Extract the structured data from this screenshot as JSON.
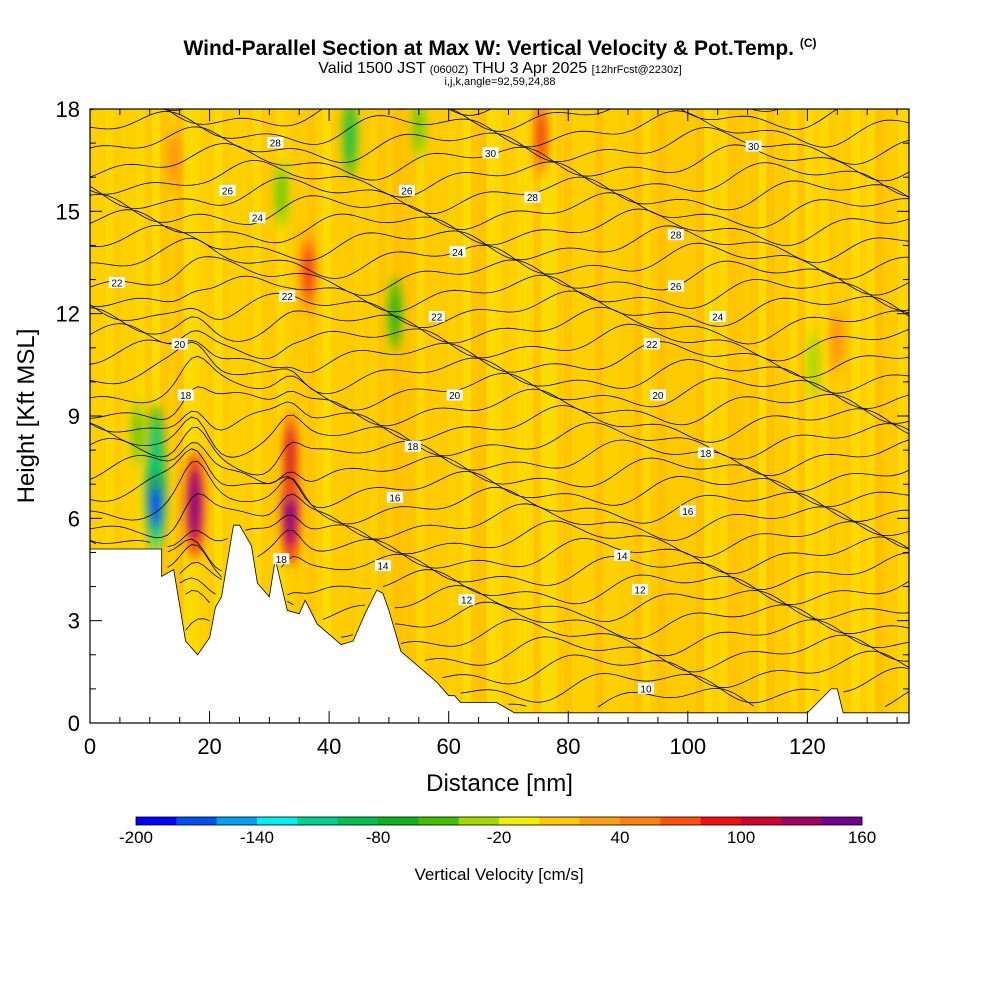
{
  "header": {
    "title": "Wind-Parallel Section at Max W: Vertical Velocity & Pot.Temp.",
    "title_mark": "(C)",
    "valid_prefix": "Valid 1500 JST",
    "valid_zulu": "(0600Z)",
    "valid_date": "THU 3 Apr 2025",
    "forecast_note": "[12hrFcst@2230z]",
    "indices": "i,j,k,angle=92,59,24,88"
  },
  "chart_data": {
    "type": "heatmap",
    "xlabel": "Distance [nm]",
    "ylabel": "Height [Kft MSL]",
    "xlim": [
      0,
      137
    ],
    "ylim": [
      0,
      18
    ],
    "x_ticks": [
      0,
      20,
      40,
      60,
      80,
      100,
      120
    ],
    "y_ticks": [
      0,
      3,
      6,
      9,
      12,
      15,
      18
    ],
    "terrain": {
      "x": [
        0,
        12,
        12,
        14,
        16,
        18,
        20,
        21,
        22,
        24,
        25,
        27,
        28,
        30,
        31,
        33,
        35,
        36,
        38,
        40,
        42,
        44,
        46,
        48,
        49,
        50,
        52,
        54,
        56,
        58,
        60,
        61,
        62,
        64,
        66,
        68,
        70,
        71,
        72,
        80,
        100,
        120,
        124,
        125,
        126,
        128,
        137
      ],
      "y": [
        5.1,
        5.1,
        4.3,
        4.5,
        2.4,
        2.0,
        2.5,
        3.4,
        3.7,
        5.8,
        5.8,
        5.2,
        4.1,
        3.7,
        4.8,
        3.3,
        3.2,
        3.6,
        2.9,
        2.6,
        2.3,
        2.4,
        3.2,
        3.9,
        3.8,
        3.3,
        2.1,
        1.8,
        1.5,
        1.2,
        0.8,
        0.8,
        0.6,
        0.6,
        0.6,
        0.6,
        0.4,
        0.3,
        0.3,
        0.3,
        0.3,
        0.3,
        1.0,
        1.0,
        0.3,
        0.3,
        0.3
      ]
    },
    "vertical_velocity_features": [
      {
        "x": 11,
        "y": 6.8,
        "value": -200
      },
      {
        "x": 11,
        "y": 8.0,
        "value": -110
      },
      {
        "x": 17.5,
        "y": 6.4,
        "value": 160
      },
      {
        "x": 33.5,
        "y": 6.2,
        "value": 160
      },
      {
        "x": 33.5,
        "y": 7.8,
        "value": 110
      },
      {
        "x": 36.5,
        "y": 13.2,
        "value": 95
      },
      {
        "x": 43.5,
        "y": 17.2,
        "value": -95
      },
      {
        "x": 51,
        "y": 12.0,
        "value": -70
      },
      {
        "x": 55,
        "y": 17.5,
        "value": -55
      },
      {
        "x": 75.5,
        "y": 17.2,
        "value": 85
      },
      {
        "x": 121,
        "y": 10.5,
        "value": -40
      },
      {
        "x": 125,
        "y": 11.2,
        "value": 55
      },
      {
        "x": 32,
        "y": 15.5,
        "value": -60
      },
      {
        "x": 14,
        "y": 16.5,
        "value": 45
      },
      {
        "x": 8,
        "y": 8.5,
        "value": -55
      }
    ],
    "theta_contour_labels": [
      {
        "x": 31,
        "y": 17.0,
        "value": "28"
      },
      {
        "x": 67,
        "y": 16.7,
        "value": "30"
      },
      {
        "x": 111,
        "y": 16.9,
        "value": "30"
      },
      {
        "x": 23,
        "y": 15.6,
        "value": "26"
      },
      {
        "x": 53,
        "y": 15.6,
        "value": "26"
      },
      {
        "x": 74,
        "y": 15.4,
        "value": "28"
      },
      {
        "x": 98,
        "y": 14.3,
        "value": "28"
      },
      {
        "x": 28,
        "y": 14.8,
        "value": "24"
      },
      {
        "x": 61.5,
        "y": 13.8,
        "value": "24"
      },
      {
        "x": 4.5,
        "y": 12.9,
        "value": "22"
      },
      {
        "x": 33,
        "y": 12.5,
        "value": "22"
      },
      {
        "x": 98,
        "y": 12.8,
        "value": "26"
      },
      {
        "x": 58,
        "y": 11.9,
        "value": "22"
      },
      {
        "x": 105,
        "y": 11.9,
        "value": "24"
      },
      {
        "x": 15,
        "y": 11.1,
        "value": "20"
      },
      {
        "x": 94,
        "y": 11.1,
        "value": "22"
      },
      {
        "x": 16,
        "y": 9.6,
        "value": "18"
      },
      {
        "x": 61,
        "y": 9.6,
        "value": "20"
      },
      {
        "x": 95,
        "y": 9.6,
        "value": "20"
      },
      {
        "x": 54,
        "y": 8.1,
        "value": "18"
      },
      {
        "x": 103,
        "y": 7.9,
        "value": "18"
      },
      {
        "x": 51,
        "y": 6.6,
        "value": "16"
      },
      {
        "x": 100,
        "y": 6.2,
        "value": "16"
      },
      {
        "x": 32,
        "y": 4.8,
        "value": "18"
      },
      {
        "x": 49,
        "y": 4.6,
        "value": "14"
      },
      {
        "x": 89,
        "y": 4.9,
        "value": "14"
      },
      {
        "x": 63,
        "y": 3.6,
        "value": "12"
      },
      {
        "x": 92,
        "y": 3.9,
        "value": "12"
      },
      {
        "x": 93,
        "y": 1.0,
        "value": "10"
      }
    ],
    "colorbar": {
      "title": "Vertical Velocity [cm/s]",
      "min": -200,
      "max": 160,
      "step": 20,
      "tick_labels": [
        "-200",
        "-140",
        "-80",
        "-20",
        "40",
        "100",
        "160"
      ],
      "colors": [
        "#0000ff",
        "#0050f0",
        "#00a0f0",
        "#00f0f0",
        "#00d090",
        "#00c050",
        "#10b020",
        "#40c000",
        "#a0d800",
        "#f0f000",
        "#ffc800",
        "#ffa010",
        "#ff8010",
        "#ff5010",
        "#f01010",
        "#d00030",
        "#a00060",
        "#700090"
      ]
    }
  }
}
